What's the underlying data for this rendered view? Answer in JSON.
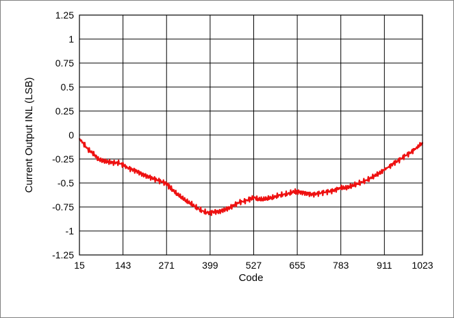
{
  "chart_data": {
    "type": "line",
    "xlabel": "Code",
    "ylabel": "Current Output INL (LSB)",
    "xlim": [
      15,
      1023
    ],
    "ylim": [
      -1.25,
      1.25
    ],
    "x_ticks": [
      15,
      143,
      271,
      399,
      527,
      655,
      783,
      911,
      1023
    ],
    "y_ticks": [
      1.25,
      1,
      0.75,
      0.5,
      0.25,
      0,
      -0.25,
      -0.5,
      -0.75,
      -1,
      -1.25
    ],
    "x_tick_labels": [
      "15",
      "143",
      "271",
      "399",
      "527",
      "655",
      "783",
      "911",
      "1023"
    ],
    "y_tick_labels": [
      "1.25",
      "1",
      "0.75",
      "0.5",
      "0.25",
      "0",
      "-0.25",
      "-0.5",
      "-0.75",
      "-1",
      "-1.25"
    ],
    "grid": true,
    "colors": {
      "series": "#ee1111",
      "grid": "#000000",
      "frame": "#808080"
    },
    "series": [
      {
        "x": [
          15,
          25,
          40,
          55,
          70,
          85,
          100,
          115,
          130,
          143,
          155,
          170,
          185,
          200,
          215,
          230,
          245,
          260,
          271,
          285,
          300,
          315,
          330,
          345,
          360,
          375,
          390,
          399,
          410,
          425,
          440,
          455,
          470,
          485,
          500,
          515,
          527,
          540,
          555,
          570,
          585,
          600,
          615,
          630,
          645,
          655,
          670,
          685,
          700,
          715,
          730,
          745,
          760,
          775,
          783,
          800,
          815,
          830,
          845,
          860,
          875,
          890,
          905,
          911,
          925,
          940,
          955,
          970,
          985,
          1000,
          1010,
          1023
        ],
        "y": [
          -0.04,
          -0.08,
          -0.15,
          -0.19,
          -0.25,
          -0.27,
          -0.28,
          -0.29,
          -0.29,
          -0.31,
          -0.34,
          -0.36,
          -0.38,
          -0.41,
          -0.43,
          -0.45,
          -0.47,
          -0.49,
          -0.51,
          -0.56,
          -0.61,
          -0.65,
          -0.69,
          -0.72,
          -0.76,
          -0.79,
          -0.81,
          -0.81,
          -0.8,
          -0.8,
          -0.78,
          -0.76,
          -0.73,
          -0.7,
          -0.69,
          -0.67,
          -0.65,
          -0.67,
          -0.67,
          -0.66,
          -0.65,
          -0.63,
          -0.62,
          -0.61,
          -0.59,
          -0.59,
          -0.6,
          -0.61,
          -0.62,
          -0.61,
          -0.6,
          -0.59,
          -0.58,
          -0.56,
          -0.55,
          -0.55,
          -0.53,
          -0.51,
          -0.49,
          -0.47,
          -0.44,
          -0.41,
          -0.38,
          -0.36,
          -0.33,
          -0.29,
          -0.26,
          -0.22,
          -0.19,
          -0.15,
          -0.12,
          -0.08
        ]
      }
    ]
  }
}
